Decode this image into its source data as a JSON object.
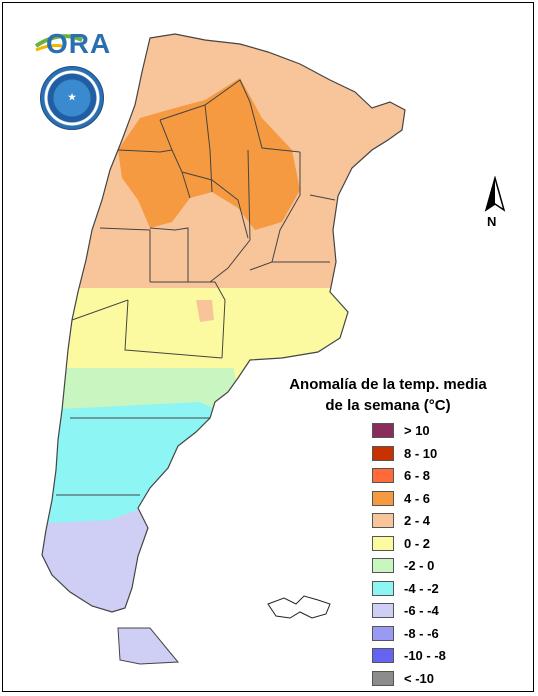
{
  "logo": {
    "text": "ORA"
  },
  "north_label": "N",
  "legend": {
    "title_line1": "Anomalía de la temp. media",
    "title_line2": "de la semana (°C)",
    "classes": [
      {
        "label": "> 10",
        "color": "#8b2d5c"
      },
      {
        "label": "8 - 10",
        "color": "#c83200"
      },
      {
        "label": "6 - 8",
        "color": "#ff6a3a"
      },
      {
        "label": "4 - 6",
        "color": "#f59a40"
      },
      {
        "label": "2 - 4",
        "color": "#f8c49a"
      },
      {
        "label": "0 - 2",
        "color": "#fbfaa0"
      },
      {
        "label": "-2 - 0",
        "color": "#c8f5c0"
      },
      {
        "label": "-4 - -2",
        "color": "#8ef5f5"
      },
      {
        "label": "-6 - -4",
        "color": "#cfcff5"
      },
      {
        "label": "-8 - -6",
        "color": "#9a9af5"
      },
      {
        "label": "-10 - -8",
        "color": "#6464f0"
      },
      {
        "label": "< -10",
        "color": "#8c8c8c"
      }
    ]
  },
  "map_colors": {
    "c_4_6": "#f59a40",
    "c_2_4": "#f8c49a",
    "c_0_2": "#fbfaa0",
    "c_m2_0": "#c8f5c0",
    "c_m4_m2": "#8ef5f5",
    "c_m6_m4": "#cfcff5",
    "border": "#444444"
  }
}
